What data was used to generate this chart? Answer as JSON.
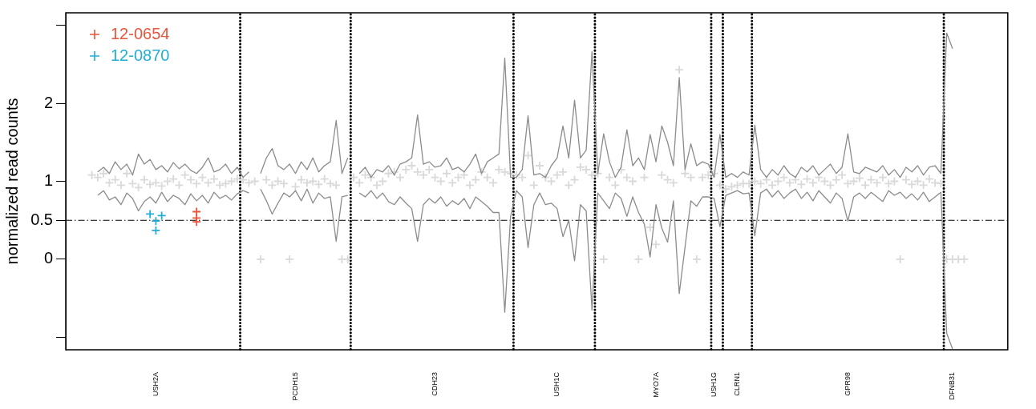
{
  "chart_data": {
    "type": "scatter",
    "ylabel": "normalized read counts",
    "ylim": [
      -1.16,
      3.16
    ],
    "yticks": [
      {
        "value": -1,
        "label": null
      },
      0,
      0.5,
      1,
      2,
      {
        "value": 3,
        "label": null
      }
    ],
    "grid": false,
    "legend": "top left",
    "marker": "cross",
    "categories": [
      null,
      null,
      null,
      null,
      null,
      null,
      null,
      null,
      null,
      null,
      null,
      null,
      null,
      null,
      null,
      "USH2A",
      null,
      null,
      null,
      null,
      null,
      null,
      null,
      null,
      null,
      null,
      null,
      null,
      null,
      null,
      null,
      null,
      null,
      null,
      null,
      null,
      null,
      null,
      null,
      "PCDH15",
      null,
      null,
      null,
      null,
      null,
      null,
      null,
      null,
      null,
      null,
      null,
      null,
      null,
      null,
      null,
      null,
      null,
      null,
      null,
      null,
      null,
      null,
      null,
      "CDH23",
      null,
      null,
      null,
      null,
      null,
      null,
      null,
      null,
      null,
      null,
      null,
      null,
      null,
      null,
      null,
      null,
      null,
      null,
      null,
      null,
      "USH1C",
      null,
      null,
      null,
      null,
      null,
      null,
      null,
      null,
      null,
      null,
      null,
      null,
      null,
      null,
      null,
      null,
      "MYO7A",
      null,
      null,
      null,
      null,
      null,
      null,
      null,
      null,
      null,
      "USH1G",
      null,
      null,
      null,
      "CLRN1",
      null,
      null,
      null,
      null,
      null,
      null,
      null,
      null,
      null,
      null,
      null,
      null,
      null,
      null,
      null,
      null,
      null,
      null,
      "GPR98",
      null,
      null,
      null,
      null,
      null,
      null,
      null,
      null,
      null,
      null,
      null,
      null,
      null,
      null,
      null,
      null,
      null,
      "DFNB31",
      null,
      null,
      null,
      null,
      null,
      null,
      null,
      null,
      null
    ],
    "ref_lines": [
      {
        "axis": "y",
        "value": 0.5,
        "color": "#000000",
        "line_style": "dashed"
      }
    ],
    "series": [
      {
        "type": "scatter",
        "color": "#d9d9d9",
        "values": [
          null,
          null,
          null,
          null,
          1.08,
          1.05,
          1.1,
          0.98,
          1.02,
          0.95,
          1.1,
          0.97,
          0.92,
          1.02,
          0.96,
          0.98,
          0.94,
          1.0,
          1.03,
          0.95,
          1.08,
          1.02,
          0.97,
          1.05,
          0.98,
          1.03,
          0.95,
          0.97,
          1.0,
          1.03,
          1.02,
          0.98,
          1.0,
          0,
          1.02,
          0.95,
          1.0,
          0.97,
          0,
          0.93,
          1.02,
          0.98,
          1.0,
          0.96,
          1.03,
          0.97,
          0.95,
          0,
          0,
          1.05,
          0.98,
          1.08,
          1.05,
          0.95,
          1.0,
          1.1,
          1.12,
          1.05,
          1.15,
          1.2,
          1.12,
          1.08,
          1.15,
          1.05,
          1.0,
          1.1,
          0.98,
          1.05,
          1.08,
          0.95,
          1.02,
          1.12,
          1.05,
          0.98,
          1.15,
          1.12,
          1.1,
          1.08,
          1.05,
          1.33,
          0.95,
          1.2,
          1.05,
          1.0,
          1.08,
          1.12,
          0.95,
          1.02,
          1.18,
          1.15,
          1.08,
          1.1,
          0,
          1.05,
          0.95,
          1.15,
          1.05,
          1.0,
          0,
          1.05,
          0.41,
          0.19,
          1.08,
          1.02,
          0.98,
          2.43,
          1.1,
          1.05,
          0,
          1.05,
          1.08,
          1.1,
          0.95,
          0.9,
          0.93,
          0.95,
          0.97,
          0.97,
          1.0,
          0.97,
          1.02,
          0.95,
          1.0,
          1.05,
          0.98,
          1.02,
          0.96,
          1.03,
          0.98,
          1.05,
          1.0,
          0.95,
          1.02,
          1.08,
          0.97,
          1.0,
          1.04,
          0.95,
          1.02,
          0.98,
          1.05,
          0.97,
          1.0,
          0,
          1.02,
          0.96,
          1.0,
          0.95,
          1.03,
          0.98,
          0.97,
          0,
          0,
          0,
          0,
          null,
          null,
          null,
          null,
          null,
          null,
          null
        ]
      },
      {
        "type": "line",
        "color": "#8c8c8c",
        "marker": "none",
        "line_style": "solid",
        "values": [
          null,
          null,
          null,
          null,
          null,
          1.12,
          1.18,
          1.1,
          1.25,
          1.15,
          1.22,
          1.08,
          1.35,
          1.22,
          1.28,
          1.15,
          1.2,
          1.12,
          1.24,
          1.16,
          1.22,
          1.14,
          1.1,
          1.18,
          1.3,
          1.12,
          1.15,
          1.22,
          1.1,
          1.18,
          1.05,
          1.12,
          null,
          1.1,
          1.3,
          1.42,
          1.2,
          1.15,
          1.22,
          1.1,
          1.25,
          1.15,
          1.3,
          1.12,
          1.2,
          1.25,
          1.78,
          1.1,
          1.3,
          null,
          1.1,
          1.18,
          1.05,
          1.15,
          1.12,
          1.2,
          1.08,
          1.22,
          1.25,
          1.3,
          1.85,
          1.22,
          1.25,
          1.18,
          1.2,
          1.3,
          1.15,
          1.18,
          1.12,
          1.22,
          1.35,
          1.1,
          1.25,
          1.3,
          1.35,
          2.58,
          1.05,
          1.05,
          1.15,
          1.84,
          1.08,
          1.1,
          1.05,
          1.2,
          1.3,
          1.71,
          1.3,
          2.04,
          1.3,
          1.4,
          2.66,
          1.1,
          1.61,
          1.25,
          1.05,
          1.18,
          1.66,
          1.2,
          1.3,
          1.15,
          1.6,
          1.25,
          1.71,
          1.5,
          1.2,
          2.33,
          1.15,
          1.48,
          1.2,
          1.25,
          1.22,
          1.05,
          1.6,
          1.05,
          1.1,
          1.05,
          1.12,
          1.08,
          1.72,
          1.15,
          1.05,
          1.15,
          1.08,
          1.2,
          1.1,
          1.05,
          1.18,
          1.12,
          1.2,
          1.08,
          1.15,
          1.22,
          1.1,
          1.18,
          1.61,
          1.12,
          1.1,
          1.18,
          1.15,
          1.12,
          1.2,
          1.08,
          1.15,
          1.05,
          1.18,
          1.12,
          1.2,
          1.08,
          1.18,
          1.2,
          1.1,
          2.9,
          2.7,
          null,
          null,
          null,
          null,
          null,
          null,
          null,
          null,
          null
        ]
      },
      {
        "type": "line",
        "color": "#8c8c8c",
        "marker": "none",
        "line_style": "solid",
        "values": [
          null,
          null,
          null,
          null,
          null,
          0.82,
          0.88,
          0.76,
          0.8,
          0.7,
          0.85,
          0.78,
          0.62,
          0.74,
          0.8,
          0.72,
          0.86,
          0.74,
          0.82,
          0.78,
          0.7,
          0.84,
          0.75,
          0.82,
          0.72,
          0.86,
          0.78,
          0.82,
          0.76,
          0.84,
          0.88,
          0.85,
          null,
          0.9,
          0.75,
          0.58,
          0.72,
          0.85,
          0.8,
          0.88,
          0.75,
          0.9,
          0.72,
          0.85,
          0.78,
          0.8,
          0.23,
          0.8,
          0.82,
          null,
          0.85,
          0.8,
          0.88,
          0.78,
          0.85,
          0.74,
          0.7,
          0.8,
          0.72,
          0.65,
          0.23,
          0.7,
          0.78,
          0.72,
          0.8,
          0.68,
          0.75,
          0.7,
          0.78,
          0.65,
          0.8,
          0.74,
          0.68,
          0.6,
          0.6,
          -0.68,
          0.55,
          0.88,
          0.8,
          0.15,
          0.7,
          0.85,
          0.7,
          0.72,
          0.65,
          0.29,
          0.5,
          -0.02,
          0.7,
          0.62,
          -0.65,
          0.85,
          0.75,
          0.65,
          0.85,
          0.78,
          0.55,
          0.8,
          0.6,
          0.45,
          0.03,
          0.7,
          0.4,
          0.22,
          0.75,
          -0.44,
          0.16,
          0.75,
          0.68,
          0.8,
          0.8,
          0.78,
          0.42,
          0.82,
          0.85,
          0.88,
          0.84,
          0.85,
          0.3,
          0.85,
          0.9,
          0.8,
          0.88,
          0.78,
          0.85,
          0.9,
          0.78,
          0.86,
          0.75,
          0.88,
          0.8,
          0.72,
          0.85,
          0.78,
          0.49,
          0.8,
          0.85,
          0.78,
          0.86,
          0.8,
          0.74,
          0.88,
          0.82,
          0.86,
          0.78,
          0.84,
          0.76,
          0.86,
          0.74,
          0.8,
          0.86,
          -0.95,
          -1.15,
          null,
          null,
          null,
          null,
          null,
          null,
          null,
          null,
          null
        ]
      },
      {
        "type": "scatter",
        "name": "12-0654",
        "color": "#e8553a",
        "values": [
          null,
          null,
          null,
          null,
          null,
          null,
          null,
          null,
          null,
          null,
          null,
          null,
          null,
          null,
          null,
          null,
          null,
          null,
          null,
          null,
          null,
          null,
          0.61,
          null,
          null,
          null,
          null,
          null,
          null,
          null,
          null,
          null,
          null,
          null,
          null,
          null,
          null,
          null,
          null,
          null,
          null,
          null,
          null,
          null,
          null,
          null,
          null,
          null,
          null,
          null,
          null,
          null,
          null,
          null,
          null,
          null,
          null,
          null,
          null,
          null,
          null,
          null,
          null,
          null,
          null,
          null,
          null,
          null,
          null,
          null,
          null,
          null,
          null,
          null,
          null,
          null,
          null,
          null,
          null,
          null,
          null,
          null,
          null,
          null,
          null,
          null,
          null,
          null,
          null,
          null,
          null,
          null,
          null,
          null,
          null,
          null,
          null,
          null,
          null,
          null,
          null,
          null,
          null,
          null,
          null,
          null,
          null,
          null,
          null,
          null,
          null,
          null,
          null,
          null,
          null,
          null,
          null,
          null,
          null,
          null,
          null,
          null,
          null,
          null,
          null,
          null,
          null,
          null,
          null,
          null,
          null,
          null,
          null,
          null,
          null,
          null,
          null,
          null,
          null,
          null,
          null,
          null,
          null,
          null,
          null,
          null,
          null,
          null,
          null,
          null,
          null,
          null,
          null,
          null,
          null,
          null,
          null,
          null,
          null,
          null,
          null,
          null
        ]
      },
      {
        "type": "scatter",
        "color": "#e8553a",
        "values": [
          null,
          null,
          null,
          null,
          null,
          null,
          null,
          null,
          null,
          null,
          null,
          null,
          null,
          null,
          null,
          null,
          null,
          null,
          null,
          null,
          null,
          null,
          0.53,
          null,
          null,
          null,
          null,
          null,
          null,
          null,
          null,
          null,
          null,
          null,
          null,
          null,
          null,
          null,
          null,
          null,
          null,
          null,
          null,
          null,
          null,
          null,
          null,
          null,
          null,
          null,
          null,
          null,
          null,
          null,
          null,
          null,
          null,
          null,
          null,
          null,
          null,
          null,
          null,
          null,
          null,
          null,
          null,
          null,
          null,
          null,
          null,
          null,
          null,
          null,
          null,
          null,
          null,
          null,
          null,
          null,
          null,
          null,
          null,
          null,
          null,
          null,
          null,
          null,
          null,
          null,
          null,
          null,
          null,
          null,
          null,
          null,
          null,
          null,
          null,
          null,
          null,
          null,
          null,
          null,
          null,
          null,
          null,
          null,
          null,
          null,
          null,
          null,
          null,
          null,
          null,
          null,
          null,
          null,
          null,
          null,
          null,
          null,
          null,
          null,
          null,
          null,
          null,
          null,
          null,
          null,
          null,
          null,
          null,
          null,
          null,
          null,
          null,
          null,
          null,
          null,
          null,
          null,
          null,
          null,
          null,
          null,
          null,
          null,
          null,
          null,
          null,
          null,
          null,
          null,
          null,
          null,
          null,
          null,
          null,
          null,
          null,
          null
        ]
      },
      {
        "type": "scatter",
        "color": "#e8553a",
        "values": [
          null,
          null,
          null,
          null,
          null,
          null,
          null,
          null,
          null,
          null,
          null,
          null,
          null,
          null,
          null,
          null,
          null,
          null,
          null,
          null,
          null,
          null,
          0.48,
          null,
          null,
          null,
          null,
          null,
          null,
          null,
          null,
          null,
          null,
          null,
          null,
          null,
          null,
          null,
          null,
          null,
          null,
          null,
          null,
          null,
          null,
          null,
          null,
          null,
          null,
          null,
          null,
          null,
          null,
          null,
          null,
          null,
          null,
          null,
          null,
          null,
          null,
          null,
          null,
          null,
          null,
          null,
          null,
          null,
          null,
          null,
          null,
          null,
          null,
          null,
          null,
          null,
          null,
          null,
          null,
          null,
          null,
          null,
          null,
          null,
          null,
          null,
          null,
          null,
          null,
          null,
          null,
          null,
          null,
          null,
          null,
          null,
          null,
          null,
          null,
          null,
          null,
          null,
          null,
          null,
          null,
          null,
          null,
          null,
          null,
          null,
          null,
          null,
          null,
          null,
          null,
          null,
          null,
          null,
          null,
          null,
          null,
          null,
          null,
          null,
          null,
          null,
          null,
          null,
          null,
          null,
          null,
          null,
          null,
          null,
          null,
          null,
          null,
          null,
          null,
          null,
          null,
          null,
          null,
          null,
          null,
          null,
          null,
          null,
          null,
          null,
          null,
          null,
          null,
          null,
          null,
          null,
          null,
          null,
          null,
          null,
          null,
          null
        ]
      },
      {
        "type": "scatter",
        "name": "12-0870",
        "color": "#22aed6",
        "values": [
          null,
          null,
          null,
          null,
          null,
          null,
          null,
          null,
          null,
          null,
          null,
          null,
          null,
          null,
          0.58,
          0.49,
          0.56,
          null,
          null,
          null,
          null,
          null,
          null,
          null,
          null,
          null,
          null,
          null,
          null,
          null,
          null,
          null,
          null,
          null,
          null,
          null,
          null,
          null,
          null,
          null,
          null,
          null,
          null,
          null,
          null,
          null,
          null,
          null,
          null,
          null,
          null,
          null,
          null,
          null,
          null,
          null,
          null,
          null,
          null,
          null,
          null,
          null,
          null,
          null,
          null,
          null,
          null,
          null,
          null,
          null,
          null,
          null,
          null,
          null,
          null,
          null,
          null,
          null,
          null,
          null,
          null,
          null,
          null,
          null,
          null,
          null,
          null,
          null,
          null,
          null,
          null,
          null,
          null,
          null,
          null,
          null,
          null,
          null,
          null,
          null,
          null,
          null,
          null,
          null,
          null,
          null,
          null,
          null,
          null,
          null,
          null,
          null,
          null,
          null,
          null,
          null,
          null,
          null,
          null,
          null,
          null,
          null,
          null,
          null,
          null,
          null,
          null,
          null,
          null,
          null,
          null,
          null,
          null,
          null,
          null,
          null,
          null,
          null,
          null,
          null,
          null,
          null,
          null,
          null,
          null,
          null,
          null,
          null,
          null,
          null,
          null,
          null,
          null,
          null,
          null,
          null,
          null,
          null,
          null,
          null,
          null,
          null
        ]
      },
      {
        "type": "scatter",
        "color": "#22aed6",
        "values": [
          null,
          null,
          null,
          null,
          null,
          null,
          null,
          null,
          null,
          null,
          null,
          null,
          null,
          null,
          null,
          0.37,
          null,
          null,
          null,
          null,
          null,
          null,
          null,
          null,
          null,
          null,
          null,
          null,
          null,
          null,
          null,
          null,
          null,
          null,
          null,
          null,
          null,
          null,
          null,
          null,
          null,
          null,
          null,
          null,
          null,
          null,
          null,
          null,
          null,
          null,
          null,
          null,
          null,
          null,
          null,
          null,
          null,
          null,
          null,
          null,
          null,
          null,
          null,
          null,
          null,
          null,
          null,
          null,
          null,
          null,
          null,
          null,
          null,
          null,
          null,
          null,
          null,
          null,
          null,
          null,
          null,
          null,
          null,
          null,
          null,
          null,
          null,
          null,
          null,
          null,
          null,
          null,
          null,
          null,
          null,
          null,
          null,
          null,
          null,
          null,
          null,
          null,
          null,
          null,
          null,
          null,
          null,
          null,
          null,
          null,
          null,
          null,
          null,
          null,
          null,
          null,
          null,
          null,
          null,
          null,
          null,
          null,
          null,
          null,
          null,
          null,
          null,
          null,
          null,
          null,
          null,
          null,
          null,
          null,
          null,
          null,
          null,
          null,
          null,
          null,
          null,
          null,
          null,
          null,
          null,
          null,
          null,
          null,
          null,
          null,
          null,
          null,
          null,
          null,
          null,
          null,
          null,
          null,
          null,
          null,
          null,
          null
        ]
      }
    ]
  }
}
